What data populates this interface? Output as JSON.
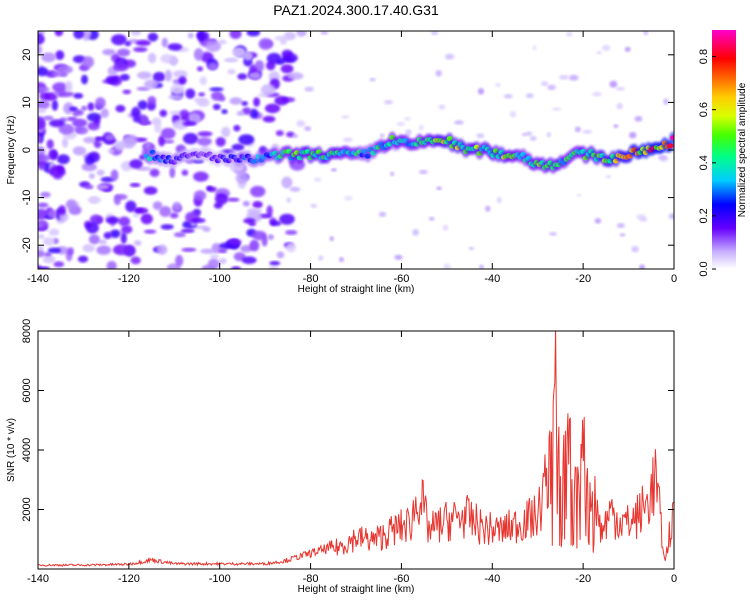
{
  "title": "PAZ1.2024.300.17.40.G31",
  "chart_data": [
    {
      "type": "heatmap",
      "xlabel": "Height of straight line (km)",
      "ylabel": "Frequency (Hz)",
      "xlim": [
        -140,
        0
      ],
      "ylim": [
        -25,
        25
      ],
      "xticks": [
        -140,
        -120,
        -100,
        -80,
        -60,
        -40,
        -20,
        0
      ],
      "yticks": [
        -20,
        -10,
        0,
        10,
        20
      ],
      "colorbar": {
        "label": "Normalized spectral amplitude",
        "range": [
          0,
          0.9
        ],
        "ticks": [
          0.0,
          0.2,
          0.4,
          0.6,
          0.8
        ]
      },
      "ridge": {
        "x": [
          -116,
          -110,
          -104,
          -98,
          -92,
          -86,
          -80,
          -74,
          -68,
          -62,
          -58,
          -54,
          -50,
          -46,
          -42,
          -38,
          -34,
          -30,
          -26,
          -22,
          -18,
          -14,
          -10,
          -6,
          -2,
          0
        ],
        "freq": [
          -1,
          -2,
          -1,
          -2,
          -2,
          -1,
          -1,
          -1,
          -1,
          2,
          1,
          2,
          2,
          0,
          0,
          -1,
          -1,
          -3,
          -3,
          -1,
          -1,
          -2,
          -1,
          0,
          1,
          2
        ],
        "amp": [
          0.35,
          0.2,
          0.15,
          0.2,
          0.3,
          0.4,
          0.5,
          0.45,
          0.35,
          0.45,
          0.4,
          0.45,
          0.55,
          0.5,
          0.45,
          0.5,
          0.4,
          0.45,
          0.45,
          0.4,
          0.5,
          0.55,
          0.6,
          0.7,
          0.7,
          0.75
        ]
      }
    },
    {
      "type": "line",
      "xlabel": "Height of straight line (km)",
      "ylabel": "SNR (10 * v/v)",
      "xlim": [
        -140,
        0
      ],
      "ylim": [
        0,
        8000
      ],
      "xticks": [
        -140,
        -120,
        -100,
        -80,
        -60,
        -40,
        -20,
        0
      ],
      "yticks": [
        2000,
        4000,
        6000,
        8000
      ],
      "color": "#e8352f",
      "x": [
        -140,
        -130,
        -120,
        -115,
        -110,
        -100,
        -90,
        -86,
        -82,
        -78,
        -74,
        -70,
        -66,
        -62,
        -58,
        -56,
        -54,
        -50,
        -46,
        -42,
        -38,
        -34,
        -30,
        -27,
        -26,
        -25,
        -24,
        -22,
        -21,
        -20,
        -19,
        -18,
        -17,
        -16,
        -14,
        -12,
        -10,
        -8,
        -6,
        -4,
        -3,
        -2,
        -1,
        0
      ],
      "y": [
        150,
        150,
        180,
        350,
        200,
        200,
        200,
        300,
        500,
        700,
        900,
        1300,
        1200,
        1600,
        1900,
        3200,
        1600,
        2000,
        2200,
        1700,
        1600,
        1900,
        2200,
        4500,
        8000,
        3500,
        6500,
        5500,
        3000,
        5200,
        3000,
        4500,
        2700,
        1500,
        2400,
        2000,
        1900,
        2200,
        2700,
        3800,
        2000,
        200,
        1500,
        2100
      ]
    }
  ]
}
